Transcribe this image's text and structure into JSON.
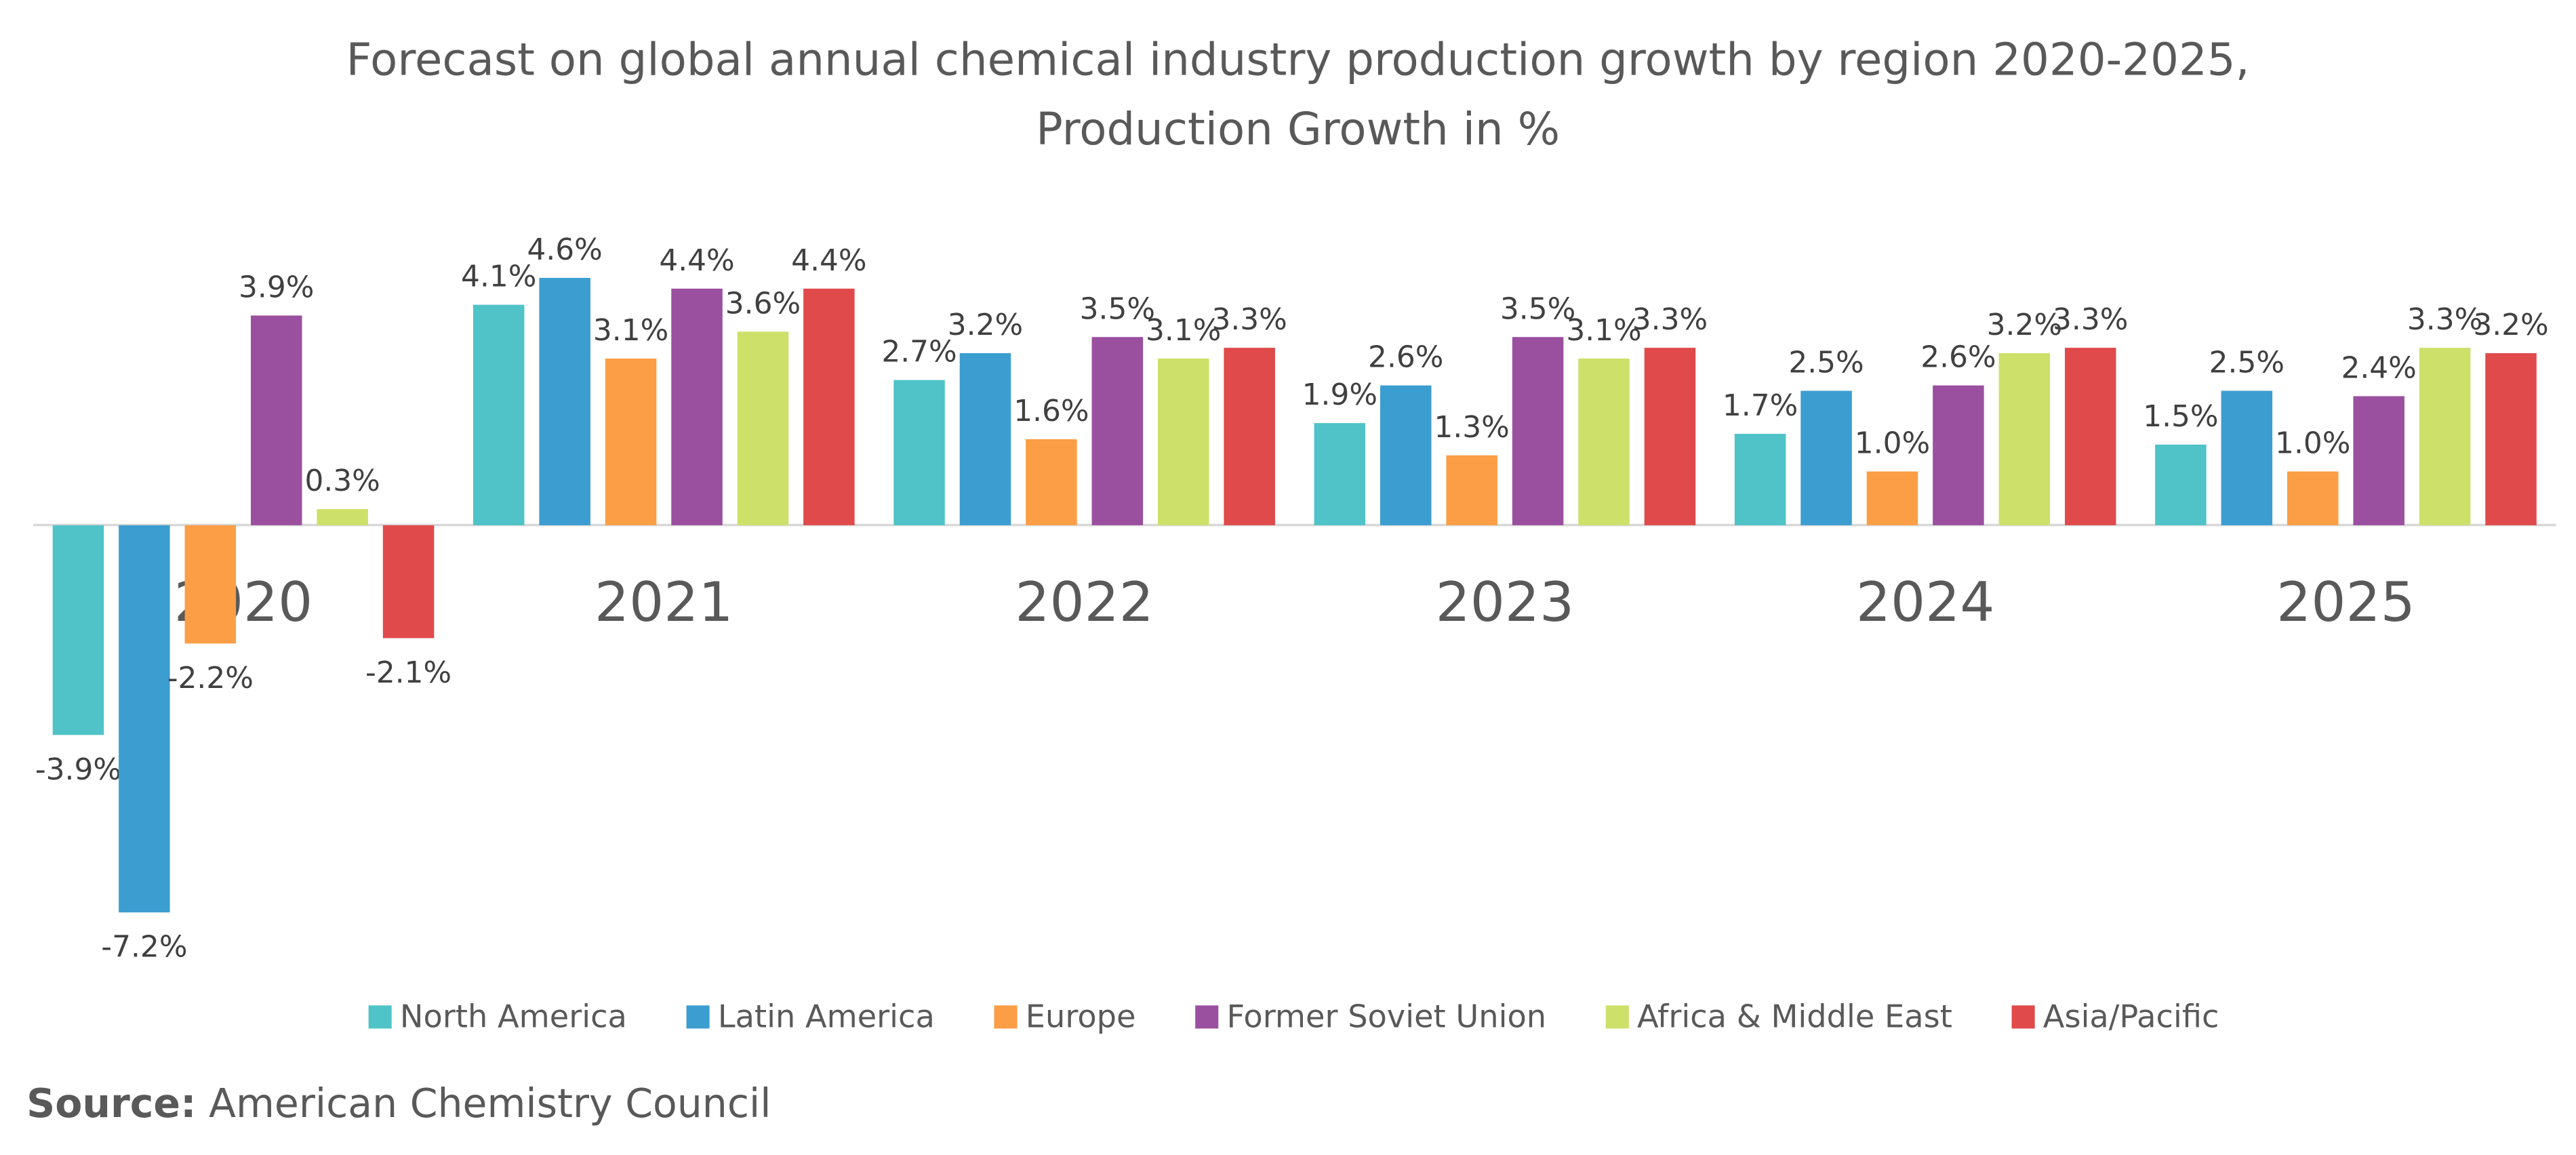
{
  "chart_data": {
    "type": "bar",
    "title": "Forecast on global annual chemical industry production growth by region 2020-2025,",
    "subtitle": "Production Growth in %",
    "categories": [
      "2020",
      "2021",
      "2022",
      "2023",
      "2024",
      "2025"
    ],
    "ylim": [
      -8.5,
      5.5
    ],
    "legend": "bottom",
    "series": [
      {
        "name": "North America",
        "color": "#4fc3c7",
        "values": [
          -3.9,
          4.1,
          2.7,
          1.9,
          1.7,
          1.5
        ],
        "value_labels": [
          "-3.9%",
          "4.1%",
          "2.7%",
          "1.9%",
          "1.7%",
          "1.5%"
        ]
      },
      {
        "name": "Latin America",
        "color": "#3c9dd0",
        "values": [
          -7.2,
          4.6,
          3.2,
          2.6,
          2.5,
          2.5
        ],
        "value_labels": [
          "-7.2%",
          "4.6%",
          "3.2%",
          "2.6%",
          "2.5%",
          "2.5%"
        ]
      },
      {
        "name": "Europe",
        "color": "#fb9e45",
        "values": [
          -2.2,
          3.1,
          1.6,
          1.3,
          1.0,
          1.0
        ],
        "value_labels": [
          "-2.2%",
          "3.1%",
          "1.6%",
          "1.3%",
          "1.0%",
          "1.0%"
        ]
      },
      {
        "name": "Former Soviet Union",
        "color": "#9b4f9f",
        "values": [
          3.9,
          4.4,
          3.5,
          3.5,
          2.6,
          2.4
        ],
        "value_labels": [
          "3.9%",
          "4.4%",
          "3.5%",
          "3.5%",
          "2.6%",
          "2.4%"
        ]
      },
      {
        "name": "Africa & Middle East",
        "color": "#cde06a",
        "values": [
          0.3,
          3.6,
          3.1,
          3.1,
          3.2,
          3.3
        ],
        "value_labels": [
          "0.3%",
          "3.6%",
          "3.1%",
          "3.1%",
          "3.2%",
          "3.3%"
        ]
      },
      {
        "name": "Asia/Pacific",
        "color": "#e04a4b",
        "values": [
          -2.1,
          4.4,
          3.3,
          3.3,
          3.3,
          3.2
        ],
        "value_labels": [
          "-2.1%",
          "4.4%",
          "3.3%",
          "3.3%",
          "3.3%",
          "3.2%"
        ]
      }
    ]
  },
  "source": {
    "label": "Source:",
    "text": "American Chemistry Council"
  }
}
